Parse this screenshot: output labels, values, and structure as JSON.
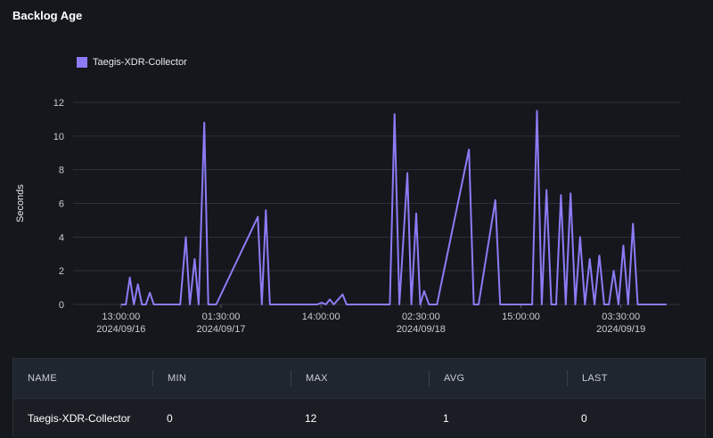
{
  "panel": {
    "title": "Backlog Age"
  },
  "legend": {
    "series_name": "Taegis-XDR-Collector",
    "color": "#8b7cf6"
  },
  "chart_data": {
    "type": "line",
    "ylabel": "Seconds",
    "ylim": [
      0,
      12
    ],
    "yticks": [
      0,
      2,
      4,
      6,
      8,
      10,
      12
    ],
    "grid": true,
    "xticks": [
      {
        "x": 0,
        "time": "13:00:00",
        "date": "2024/09/16"
      },
      {
        "x": 12.5,
        "time": "01:30:00",
        "date": "2024/09/17"
      },
      {
        "x": 25,
        "time": "14:00:00",
        "date": ""
      },
      {
        "x": 37.5,
        "time": "02:30:00",
        "date": "2024/09/18"
      },
      {
        "x": 50,
        "time": "15:00:00",
        "date": ""
      },
      {
        "x": 62.5,
        "time": "03:30:00",
        "date": "2024/09/19"
      }
    ],
    "series": [
      {
        "name": "Taegis-XDR-Collector",
        "color": "#8b7cf6",
        "x": [
          0,
          0.6,
          1.1,
          1.6,
          2.1,
          2.6,
          3.1,
          3.6,
          4.1,
          7.4,
          8.1,
          8.6,
          9.2,
          9.7,
          10.4,
          10.9,
          11.4,
          11.9,
          17.1,
          17.6,
          18.1,
          18.6,
          19.1,
          24.5,
          25.1,
          25.6,
          26.1,
          26.6,
          27.7,
          28.2,
          28.7,
          33.6,
          34.2,
          34.8,
          35.8,
          36.3,
          36.9,
          37.4,
          37.9,
          38.5,
          39.0,
          39.5,
          43.5,
          44.1,
          44.7,
          46.8,
          47.4,
          48.0,
          51.4,
          52.0,
          52.6,
          53.2,
          53.8,
          54.4,
          55.0,
          55.6,
          56.2,
          56.8,
          57.4,
          58.0,
          58.6,
          59.2,
          59.8,
          60.4,
          61.0,
          61.6,
          62.2,
          62.8,
          63.4,
          64.0,
          64.6,
          65.2,
          65.8,
          66.4,
          67.0,
          68.2
        ],
        "y": [
          0,
          0,
          1.6,
          0,
          1.2,
          0,
          0,
          0.7,
          0,
          0,
          4.0,
          0,
          2.7,
          0,
          10.8,
          0,
          0,
          0,
          5.2,
          0,
          5.6,
          0,
          0,
          0,
          0.1,
          0,
          0.3,
          0,
          0.6,
          0,
          0,
          0,
          11.3,
          0,
          7.8,
          0,
          5.4,
          0,
          0.8,
          0,
          0,
          0,
          9.2,
          0,
          0,
          6.2,
          0,
          0,
          0,
          11.5,
          0,
          6.8,
          0,
          0,
          6.5,
          0,
          6.6,
          0,
          4.0,
          0,
          2.7,
          0,
          2.9,
          0,
          0,
          2.0,
          0,
          3.5,
          0,
          4.8,
          0,
          0,
          0,
          0,
          0,
          0
        ]
      }
    ]
  },
  "table": {
    "headers": {
      "name": "NAME",
      "min": "MIN",
      "max": "MAX",
      "avg": "AVG",
      "last": "LAST"
    },
    "rows": [
      {
        "name": "Taegis-XDR-Collector",
        "min": "0",
        "max": "12",
        "avg": "1",
        "last": "0"
      }
    ]
  }
}
